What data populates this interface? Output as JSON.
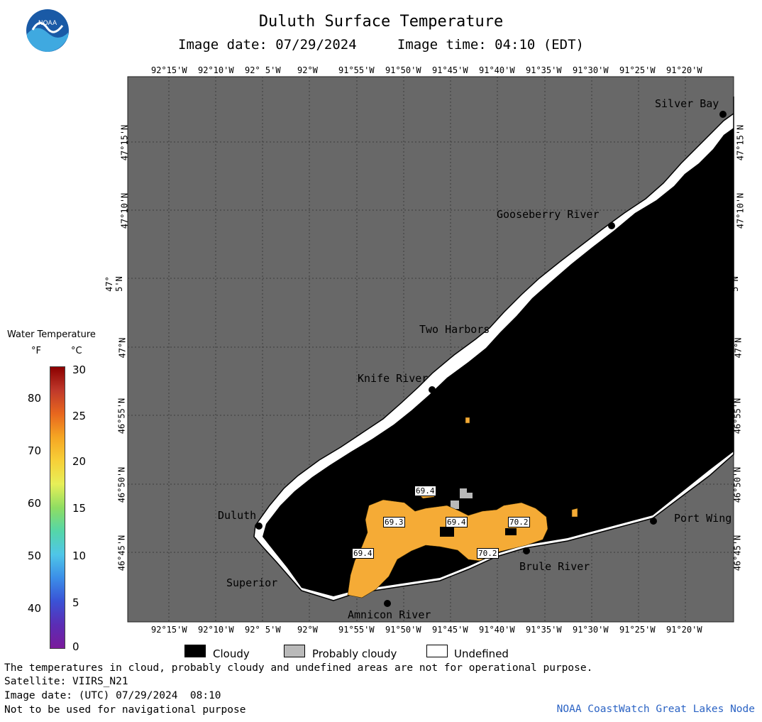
{
  "header": {
    "title": "Duluth Surface Temperature",
    "subtitle": "Image date: 07/29/2024     Image time: 04:10 (EDT)"
  },
  "logo": {
    "text": "NOAA",
    "icon": "noaa-logo-icon",
    "color_dark": "#1a5aa6",
    "color_light": "#3fa9e0"
  },
  "map": {
    "colors": {
      "land": "#686868",
      "cloud": "#000000",
      "undefined": "#ffffff",
      "probably_cloudy": "#b9b9b9",
      "water": "#f5ab36",
      "grid": "#4a4a4a"
    },
    "lon_labels": [
      "92°15'W",
      "92°10'W",
      "92° 5'W",
      "92°W",
      "91°55'W",
      "91°50'W",
      "91°45'W",
      "91°40'W",
      "91°35'W",
      "91°30'W",
      "91°25'W",
      "91°20'W"
    ],
    "lat_labels": [
      "47°15'N",
      "47°10'N",
      "47° 5'N",
      "47°N",
      "46°55'N",
      "46°50'N",
      "46°45'N"
    ],
    "places": {
      "silver_bay": "Silver Bay",
      "gooseberry_river": "Gooseberry River",
      "two_harbors": "Two Harbors",
      "knife_river": "Knife River",
      "duluth": "Duluth",
      "superior": "Superior",
      "amnicon_river": "Amnicon River",
      "brule_river": "Brule River",
      "port_wing": "Port Wing"
    },
    "temp_labels": {
      "t1": "69.4",
      "t2": "69.3",
      "t3": "69.4",
      "t4": "70.2",
      "t5": "69.4",
      "t6": "70.2"
    }
  },
  "legend": {
    "title": "Water Temperature",
    "unit_f": "°F",
    "unit_c": "°C",
    "f_ticks": [
      "80",
      "70",
      "60",
      "50",
      "40"
    ],
    "c_ticks": [
      "30",
      "25",
      "20",
      "15",
      "10",
      "5",
      "0"
    ],
    "gradient": [
      "#8b0000",
      "#c0392b",
      "#e8671e",
      "#f5a623",
      "#f7d038",
      "#e7ef58",
      "#8fdd62",
      "#55d6a8",
      "#4fc6e8",
      "#3b8ee8",
      "#3a52d6",
      "#5b2db5",
      "#7a1a9b"
    ]
  },
  "key": {
    "cloudy": "Cloudy",
    "probably_cloudy": "Probably cloudy",
    "undefined": "Undefined"
  },
  "footer": {
    "line1": "The temperatures in cloud, probably cloudy and undefined areas are not for operational purpose.",
    "line2": "Satellite: VIIRS_N21",
    "line3": "Image date: (UTC) 07/29/2024  08:10",
    "line4": "Not to be used for navigational purpose",
    "credit": "NOAA CoastWatch Great Lakes Node"
  }
}
